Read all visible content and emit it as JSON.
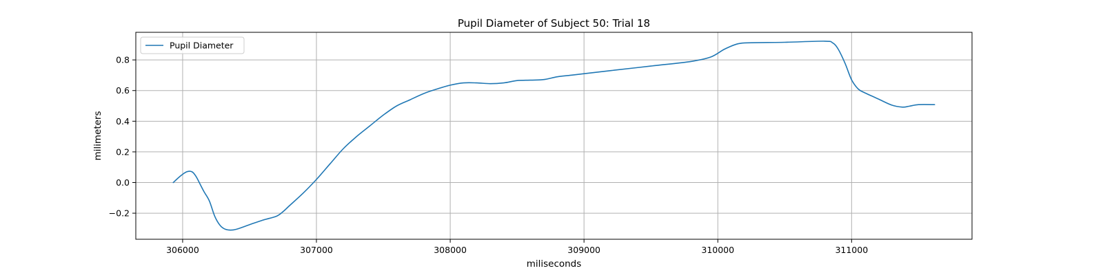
{
  "chart_data": {
    "type": "line",
    "title": "Pupil Diameter of Subject 50: Trial 18",
    "xlabel": "miliseconds",
    "ylabel": "milimeters",
    "xlim": [
      305650,
      311900
    ],
    "ylim": [
      -0.37,
      0.98
    ],
    "xticks": [
      306000,
      307000,
      308000,
      309000,
      310000,
      311000
    ],
    "yticks": [
      -0.2,
      0.0,
      0.2,
      0.4,
      0.6,
      0.8
    ],
    "ytick_labels": [
      "−0.2",
      "0.0",
      "0.2",
      "0.4",
      "0.6",
      "0.8"
    ],
    "grid": true,
    "legend_position": "upper-left",
    "series": [
      {
        "name": "Pupil Diameter",
        "color": "#1f77b4",
        "x": [
          305930,
          305980,
          306030,
          306070,
          306100,
          306130,
          306160,
          306200,
          306240,
          306280,
          306320,
          306370,
          306420,
          306500,
          306600,
          306700,
          306750,
          306800,
          306900,
          307000,
          307100,
          307200,
          307300,
          307400,
          307500,
          307600,
          307700,
          307800,
          307900,
          308000,
          308100,
          308200,
          308300,
          308400,
          308500,
          308600,
          308700,
          308800,
          308900,
          309000,
          309200,
          309500,
          309800,
          309950,
          310050,
          310150,
          310250,
          310500,
          310800,
          310860,
          310900,
          310950,
          311000,
          311050,
          311100,
          311200,
          311300,
          311380,
          311430,
          311500,
          311620
        ],
        "y": [
          0.0,
          0.04,
          0.07,
          0.07,
          0.04,
          -0.01,
          -0.06,
          -0.12,
          -0.22,
          -0.28,
          -0.305,
          -0.31,
          -0.3,
          -0.275,
          -0.245,
          -0.22,
          -0.19,
          -0.15,
          -0.07,
          0.02,
          0.12,
          0.22,
          0.3,
          0.37,
          0.44,
          0.5,
          0.54,
          0.58,
          0.61,
          0.635,
          0.65,
          0.65,
          0.645,
          0.65,
          0.665,
          0.668,
          0.672,
          0.69,
          0.7,
          0.71,
          0.73,
          0.76,
          0.79,
          0.82,
          0.87,
          0.905,
          0.912,
          0.915,
          0.922,
          0.91,
          0.87,
          0.78,
          0.67,
          0.61,
          0.585,
          0.545,
          0.505,
          0.492,
          0.498,
          0.508,
          0.508
        ]
      }
    ]
  }
}
